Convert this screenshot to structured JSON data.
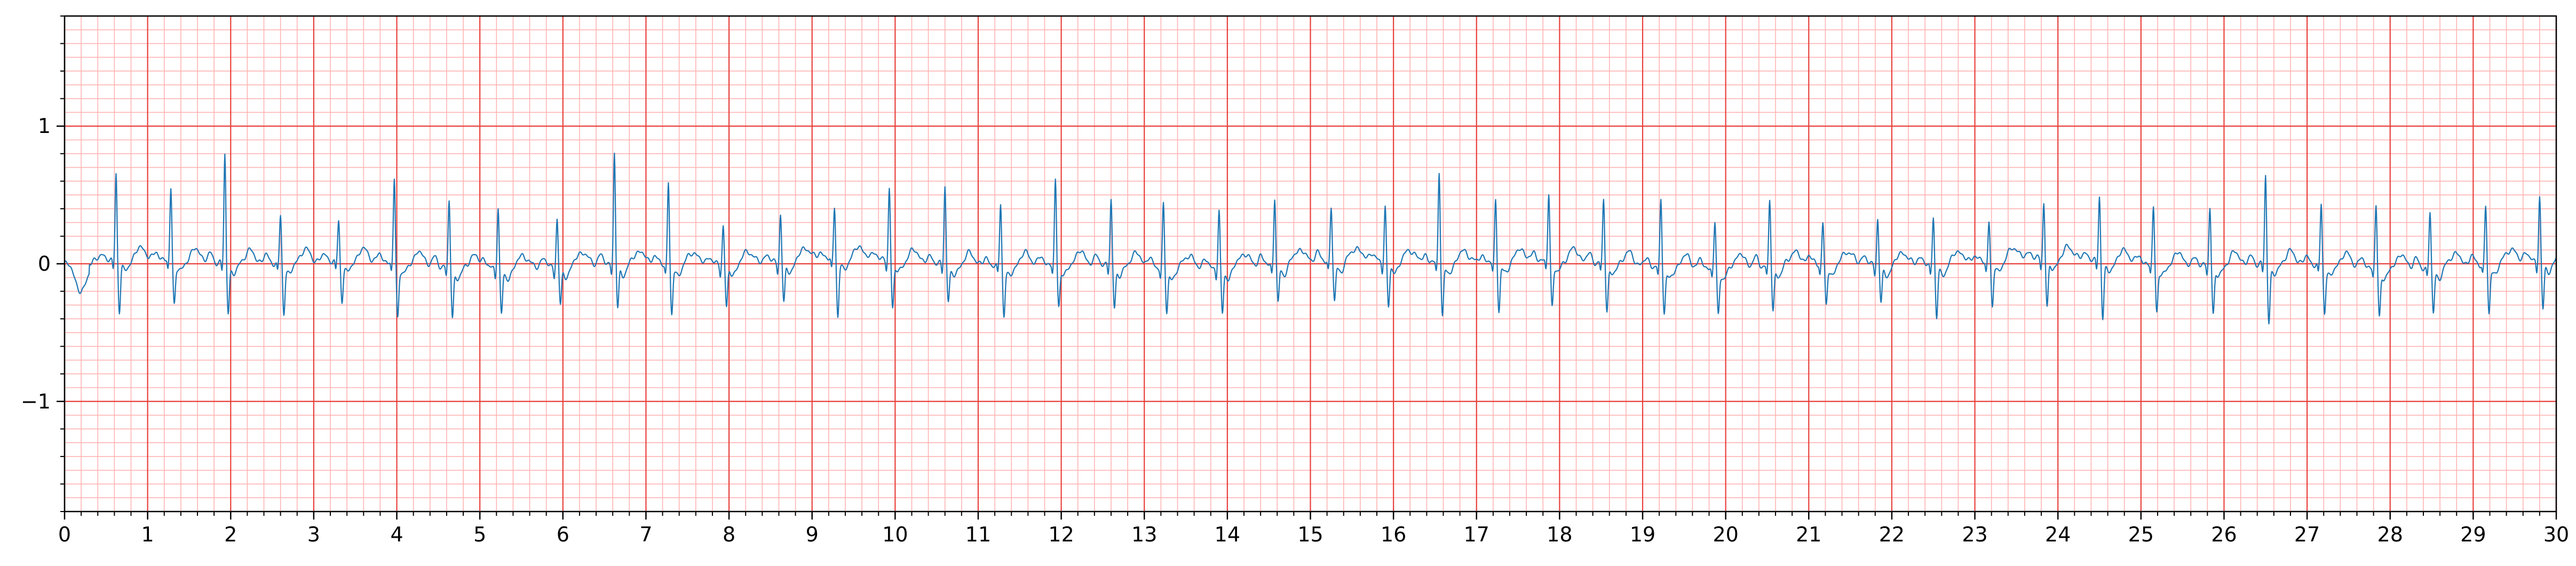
{
  "chart_data": {
    "type": "line",
    "title": "",
    "xlabel": "",
    "ylabel": "",
    "xlim": [
      0,
      30
    ],
    "ylim": [
      -1.8,
      1.8
    ],
    "x_ticks": [
      0,
      1,
      2,
      3,
      4,
      5,
      6,
      7,
      8,
      9,
      10,
      11,
      12,
      13,
      14,
      15,
      16,
      17,
      18,
      19,
      20,
      21,
      22,
      23,
      24,
      25,
      26,
      27,
      28,
      29,
      30
    ],
    "x_tick_labels": [
      "0",
      "1",
      "2",
      "3",
      "4",
      "5",
      "6",
      "7",
      "8",
      "9",
      "10",
      "11",
      "12",
      "13",
      "14",
      "15",
      "16",
      "17",
      "18",
      "19",
      "20",
      "21",
      "22",
      "23",
      "24",
      "25",
      "26",
      "27",
      "28",
      "29",
      "30"
    ],
    "y_ticks": [
      -1,
      0,
      1
    ],
    "y_tick_labels": [
      "−1",
      "0",
      "1"
    ],
    "grid": {
      "major": true,
      "minor": true,
      "major_step_x": 1,
      "major_step_y": 1,
      "minor_step_x": 0.2,
      "minor_step_y": 0.1,
      "major_color": "#e8413c",
      "minor_color": "#ffb3b3"
    },
    "legend": "none",
    "series": [
      {
        "color": "#1f77b4",
        "beat_times": [
          0.62,
          1.28,
          1.93,
          2.6,
          3.3,
          3.97,
          4.63,
          5.22,
          5.93,
          6.62,
          7.27,
          7.93,
          8.62,
          9.27,
          9.93,
          10.6,
          11.27,
          11.93,
          12.6,
          13.23,
          13.9,
          14.57,
          15.25,
          15.9,
          16.55,
          17.23,
          17.87,
          18.53,
          19.22,
          19.87,
          20.53,
          21.17,
          21.83,
          22.5,
          23.17,
          23.83,
          24.5,
          25.15,
          25.83,
          26.5,
          27.17,
          27.83,
          28.48,
          29.15,
          29.8
        ],
        "r_peaks": [
          0.6,
          0.49,
          0.75,
          0.3,
          0.25,
          0.57,
          0.44,
          0.42,
          0.3,
          0.76,
          0.56,
          0.25,
          0.31,
          0.35,
          0.49,
          0.54,
          0.42,
          0.57,
          0.43,
          0.41,
          0.37,
          0.44,
          0.35,
          0.36,
          0.64,
          0.43,
          0.46,
          0.42,
          0.45,
          0.29,
          0.43,
          0.26,
          0.3,
          0.31,
          0.26,
          0.38,
          0.44,
          0.38,
          0.38,
          0.61,
          0.4,
          0.4,
          0.36,
          0.37,
          0.43
        ],
        "s_troughs": [
          -0.33,
          -0.27,
          -0.32,
          -0.33,
          -0.24,
          -0.35,
          -0.33,
          -0.3,
          -0.26,
          -0.3,
          -0.34,
          -0.28,
          -0.27,
          -0.38,
          -0.3,
          -0.22,
          -0.32,
          -0.26,
          -0.27,
          -0.3,
          -0.31,
          -0.26,
          -0.27,
          -0.3,
          -0.35,
          -0.32,
          -0.29,
          -0.3,
          -0.28,
          -0.3,
          -0.3,
          -0.28,
          -0.25,
          -0.35,
          -0.3,
          -0.31,
          -0.37,
          -0.3,
          -0.31,
          -0.38,
          -0.3,
          -0.32,
          -0.3,
          -0.34,
          -0.33
        ]
      }
    ]
  }
}
